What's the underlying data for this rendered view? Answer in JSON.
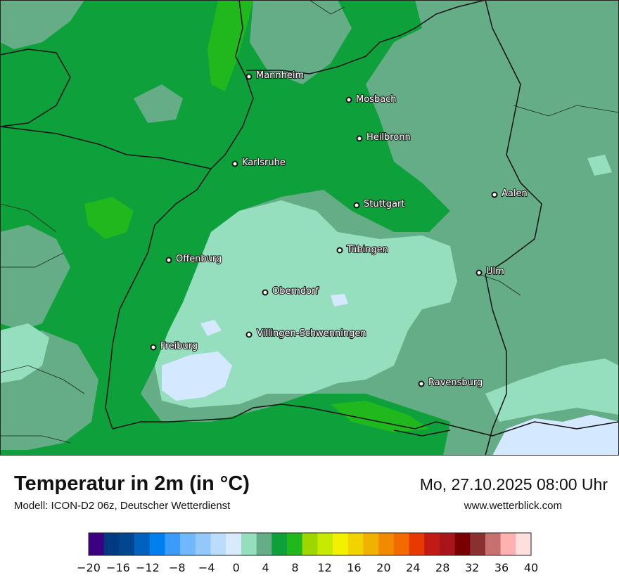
{
  "title": "Temperatur in 2m (in °C)",
  "subtitle": "Modell: ICON-D2 06z, Deutscher Wetterdienst",
  "datetime": "Mo, 27.10.2025 08:00 Uhr",
  "website": "www.wetterblick.com",
  "colors": {
    "temp_green_dark": "#0ea13b",
    "temp_green_mid": "#64ad86",
    "temp_mint": "#96dfbe",
    "temp_lightblue": "#d4e8ff",
    "temp_bright_green": "#20b81c"
  },
  "cities": [
    {
      "name": "Mannheim"
    },
    {
      "name": "Mosbach"
    },
    {
      "name": "Heilbronn"
    },
    {
      "name": "Karlsruhe"
    },
    {
      "name": "Aalen"
    },
    {
      "name": "Stuttgart"
    },
    {
      "name": "Tübingen"
    },
    {
      "name": "Offenburg"
    },
    {
      "name": "Ulm"
    },
    {
      "name": "Oberndorf"
    },
    {
      "name": "Villingen-Schwenningen"
    },
    {
      "name": "Freiburg"
    },
    {
      "name": "Ravensburg"
    }
  ],
  "legend": {
    "tick_labels": [
      "−20",
      "−16",
      "−12",
      "−8",
      "−4",
      "0",
      "4",
      "8",
      "12",
      "16",
      "20",
      "24",
      "28",
      "32",
      "36",
      "40"
    ],
    "colors": [
      "#3c0082",
      "#003a80",
      "#00478f",
      "#0062be",
      "#0080ef",
      "#3b9bfa",
      "#71b8fb",
      "#93c8fb",
      "#bcdcfc",
      "#d8ebfd",
      "#96dfbe",
      "#64ad86",
      "#0ea13b",
      "#20b81c",
      "#9ed600",
      "#c8ea00",
      "#f2f200",
      "#f2d200",
      "#f2b000",
      "#f28a00",
      "#f26a00",
      "#e83a00",
      "#c21b16",
      "#a8161c",
      "#7a0000",
      "#8a3030",
      "#c87070",
      "#ffb0b0",
      "#ffdede"
    ]
  }
}
